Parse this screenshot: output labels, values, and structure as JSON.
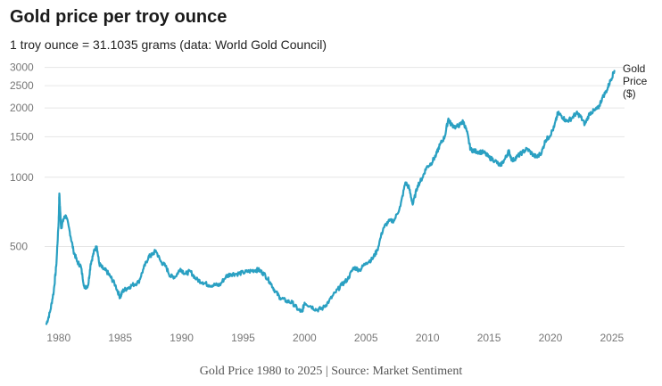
{
  "header": {
    "title": "Gold price per troy ounce",
    "subtitle": "1 troy ounce = 31.1035 grams (data: World Gold Council)"
  },
  "footer": {
    "caption": "Gold Price 1980 to 2025 | Source: Market Sentiment"
  },
  "colors": {
    "line": "#2aa0c2",
    "grid": "#e6e6e6",
    "tick_text": "#777777"
  },
  "chart_data": {
    "type": "line",
    "title": "Gold price per troy ounce",
    "subtitle": "1 troy ounce = 31.1035 grams (data: World Gold Council)",
    "xlabel": "",
    "ylabel": "",
    "y_scale": "log",
    "xlim": [
      1979,
      2025.3
    ],
    "ylim": [
      225,
      3100
    ],
    "grid": true,
    "legend_position": "right",
    "x_ticks": [
      "1980",
      "1985",
      "1990",
      "1995",
      "2000",
      "2005",
      "2010",
      "2015",
      "2020",
      "2025"
    ],
    "y_ticks": [
      "3000",
      "2500",
      "2000",
      "1500",
      "1000",
      "500"
    ],
    "series": [
      {
        "name": "Gold Price ($)",
        "legend_lines": [
          "Gold",
          "Price",
          "($)"
        ],
        "x": [
          1979.0,
          1979.3,
          1979.6,
          1979.8,
          1980.0,
          1980.05,
          1980.2,
          1980.4,
          1980.6,
          1980.9,
          1981.2,
          1981.5,
          1981.8,
          1982.1,
          1982.4,
          1982.6,
          1982.9,
          1983.1,
          1983.3,
          1983.6,
          1983.9,
          1984.2,
          1984.6,
          1985.0,
          1985.2,
          1985.6,
          1986.0,
          1986.5,
          1986.9,
          1987.3,
          1987.6,
          1987.9,
          1988.3,
          1988.7,
          1989.1,
          1989.5,
          1989.9,
          1990.3,
          1990.7,
          1991.2,
          1991.7,
          1992.2,
          1992.7,
          1993.1,
          1993.6,
          1994.0,
          1994.5,
          1995.0,
          1995.5,
          1996.0,
          1996.3,
          1996.7,
          1997.2,
          1997.6,
          1998.0,
          1998.5,
          1999.0,
          1999.5,
          1999.8,
          2000.0,
          2000.5,
          2001.0,
          2001.5,
          2002.0,
          2002.5,
          2003.0,
          2003.5,
          2004.0,
          2004.5,
          2005.0,
          2005.5,
          2005.9,
          2006.4,
          2006.8,
          2007.3,
          2007.8,
          2008.2,
          2008.5,
          2008.8,
          2009.2,
          2009.6,
          2009.9,
          2010.3,
          2010.7,
          2011.0,
          2011.4,
          2011.7,
          2011.9,
          2012.3,
          2012.7,
          2012.9,
          2013.2,
          2013.5,
          2013.8,
          2014.2,
          2014.6,
          2015.0,
          2015.5,
          2015.9,
          2016.3,
          2016.6,
          2016.9,
          2017.3,
          2017.7,
          2018.1,
          2018.6,
          2018.9,
          2019.3,
          2019.6,
          2019.9,
          2020.3,
          2020.6,
          2020.9,
          2021.3,
          2021.7,
          2022.1,
          2022.4,
          2022.8,
          2023.2,
          2023.6,
          2023.9,
          2024.2,
          2024.6,
          2024.9,
          2025.2
        ],
        "values": [
          230,
          260,
          320,
          410,
          650,
          850,
          600,
          660,
          680,
          580,
          480,
          430,
          410,
          330,
          340,
          420,
          480,
          500,
          420,
          400,
          390,
          370,
          340,
          300,
          320,
          330,
          340,
          350,
          400,
          450,
          460,
          480,
          430,
          410,
          370,
          370,
          400,
          380,
          390,
          360,
          350,
          340,
          340,
          340,
          370,
          380,
          380,
          385,
          390,
          395,
          395,
          380,
          350,
          320,
          300,
          290,
          285,
          265,
          260,
          285,
          275,
          265,
          270,
          290,
          315,
          340,
          360,
          405,
          395,
          425,
          440,
          480,
          600,
          640,
          650,
          750,
          950,
          900,
          760,
          920,
          1000,
          1100,
          1150,
          1250,
          1380,
          1500,
          1800,
          1700,
          1650,
          1700,
          1750,
          1580,
          1320,
          1300,
          1290,
          1280,
          1220,
          1180,
          1120,
          1200,
          1300,
          1180,
          1230,
          1280,
          1330,
          1250,
          1220,
          1290,
          1450,
          1500,
          1650,
          1900,
          1850,
          1750,
          1800,
          1900,
          1850,
          1700,
          1900,
          1950,
          2000,
          2200,
          2400,
          2650,
          2900
        ]
      }
    ]
  }
}
